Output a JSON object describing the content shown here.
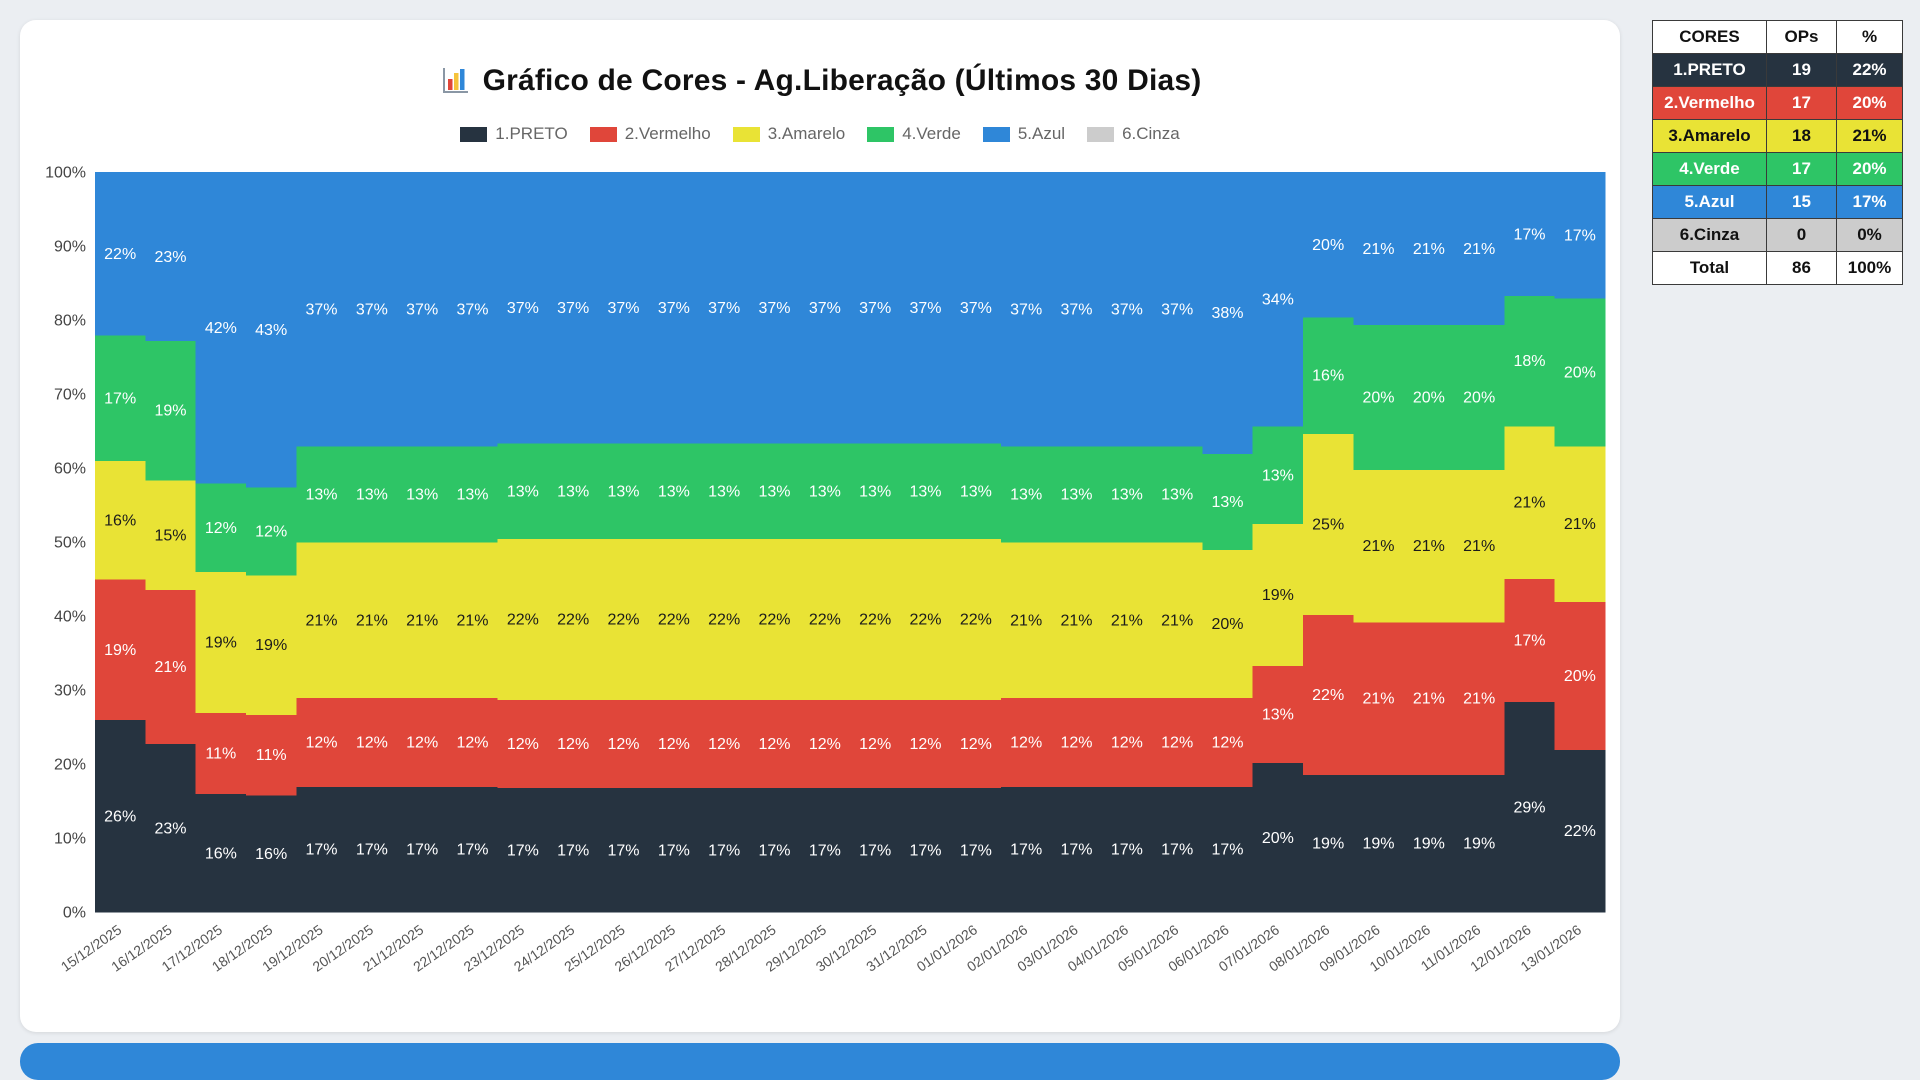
{
  "page": {
    "background": "#ebeef2",
    "card_background": "#ffffff",
    "footer_color": "#2F87D8"
  },
  "header": {
    "title": "Gráfico de Cores - Ag.Liberação (Últimos 30 Dias)",
    "title_icon": "bar-chart-icon"
  },
  "chart_data": {
    "type": "area",
    "variant": "stacked-percent-step",
    "title": "Gráfico de Cores - Ag.Liberação (Últimos 30 Dias)",
    "legend_position": "top",
    "grid": false,
    "ylim": [
      0,
      100
    ],
    "y_ticks": [
      "0%",
      "10%",
      "20%",
      "30%",
      "40%",
      "50%",
      "60%",
      "70%",
      "80%",
      "90%",
      "100%"
    ],
    "categories": [
      "15/12/2025",
      "16/12/2025",
      "17/12/2025",
      "18/12/2025",
      "19/12/2025",
      "20/12/2025",
      "21/12/2025",
      "22/12/2025",
      "23/12/2025",
      "24/12/2025",
      "25/12/2025",
      "26/12/2025",
      "27/12/2025",
      "28/12/2025",
      "29/12/2025",
      "30/12/2025",
      "31/12/2025",
      "01/01/2026",
      "02/01/2026",
      "03/01/2026",
      "04/01/2026",
      "05/01/2026",
      "06/01/2026",
      "07/01/2026",
      "08/01/2026",
      "09/01/2026",
      "10/01/2026",
      "11/01/2026",
      "12/01/2026",
      "13/01/2026"
    ],
    "series": [
      {
        "name": "1.PRETO",
        "color": "#263340",
        "label_color": "#ffffff",
        "values": [
          26,
          23,
          16,
          16,
          17,
          17,
          17,
          17,
          17,
          17,
          17,
          17,
          17,
          17,
          17,
          17,
          17,
          17,
          17,
          17,
          17,
          17,
          17,
          20,
          19,
          19,
          19,
          19,
          29,
          22
        ]
      },
      {
        "name": "2.Vermelho",
        "color": "#E0463A",
        "label_color": "#ffffff",
        "values": [
          19,
          21,
          11,
          11,
          12,
          12,
          12,
          12,
          12,
          12,
          12,
          12,
          12,
          12,
          12,
          12,
          12,
          12,
          12,
          12,
          12,
          12,
          12,
          13,
          22,
          21,
          21,
          21,
          17,
          20
        ]
      },
      {
        "name": "3.Amarelo",
        "color": "#E9E335",
        "label_color": "#1b1b1b",
        "values": [
          16,
          15,
          19,
          19,
          21,
          21,
          21,
          21,
          22,
          22,
          22,
          22,
          22,
          22,
          22,
          22,
          22,
          22,
          21,
          21,
          21,
          21,
          20,
          19,
          25,
          21,
          21,
          21,
          21,
          21
        ]
      },
      {
        "name": "4.Verde",
        "color": "#2EC566",
        "label_color": "#ffffff",
        "values": [
          17,
          19,
          12,
          12,
          13,
          13,
          13,
          13,
          13,
          13,
          13,
          13,
          13,
          13,
          13,
          13,
          13,
          13,
          13,
          13,
          13,
          13,
          13,
          13,
          16,
          20,
          20,
          20,
          18,
          20
        ]
      },
      {
        "name": "5.Azul",
        "color": "#2F87D8",
        "label_color": "#ffffff",
        "values": [
          22,
          23,
          42,
          43,
          37,
          37,
          37,
          37,
          37,
          37,
          37,
          37,
          37,
          37,
          37,
          37,
          37,
          37,
          37,
          37,
          37,
          37,
          38,
          34,
          20,
          21,
          21,
          21,
          17,
          17
        ]
      },
      {
        "name": "6.Cinza",
        "color": "#CCCCCC",
        "label_color": "#333333",
        "values": [
          0,
          0,
          0,
          0,
          0,
          0,
          0,
          0,
          0,
          0,
          0,
          0,
          0,
          0,
          0,
          0,
          0,
          0,
          0,
          0,
          0,
          0,
          0,
          0,
          0,
          0,
          0,
          0,
          0,
          0
        ]
      }
    ]
  },
  "side_table": {
    "headers": [
      "CORES",
      "OPs",
      "%"
    ],
    "rows": [
      {
        "label": "1.PRETO",
        "ops": "19",
        "pct": "22%",
        "bg": "#263340",
        "fg": "#ffffff"
      },
      {
        "label": "2.Vermelho",
        "ops": "17",
        "pct": "20%",
        "bg": "#E0463A",
        "fg": "#ffffff"
      },
      {
        "label": "3.Amarelo",
        "ops": "18",
        "pct": "21%",
        "bg": "#E9E335",
        "fg": "#111111"
      },
      {
        "label": "4.Verde",
        "ops": "17",
        "pct": "20%",
        "bg": "#2EC566",
        "fg": "#ffffff"
      },
      {
        "label": "5.Azul",
        "ops": "15",
        "pct": "17%",
        "bg": "#2F87D8",
        "fg": "#ffffff"
      },
      {
        "label": "6.Cinza",
        "ops": "0",
        "pct": "0%",
        "bg": "#CCCCCC",
        "fg": "#111111"
      },
      {
        "label": "Total",
        "ops": "86",
        "pct": "100%",
        "bg": "#ffffff",
        "fg": "#111111"
      }
    ]
  }
}
